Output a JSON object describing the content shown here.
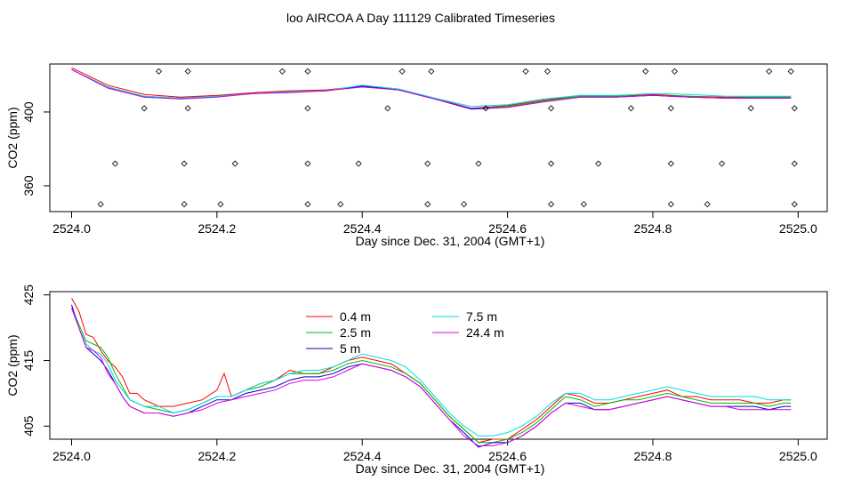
{
  "figure": {
    "title": "loo AIRCOA A  Day 111129  Calibrated Timeseries"
  },
  "chart_data": [
    {
      "type": "line",
      "title": "",
      "xlabel": "Day since Dec. 31, 2004 (GMT+1)",
      "ylabel": "CO2 (ppm)",
      "xlim": [
        2523.97,
        2525.04
      ],
      "ylim": [
        346,
        426
      ],
      "x_ticks": [
        2524.0,
        2524.2,
        2524.4,
        2524.6,
        2524.8,
        2525.0
      ],
      "x_tick_labels": [
        "2524.0",
        "2524.2",
        "2524.4",
        "2524.6",
        "2524.8",
        "2525.0"
      ],
      "y_ticks": [
        360,
        400
      ],
      "y_tick_labels": [
        "360",
        "400"
      ],
      "grid": false,
      "series": [
        {
          "color": "#ff0000",
          "x": [
            2524.0,
            2524.05,
            2524.1,
            2524.15,
            2524.2,
            2524.25,
            2524.3,
            2524.35,
            2524.4,
            2524.45,
            2524.5,
            2524.55,
            2524.6,
            2524.65,
            2524.7,
            2524.75,
            2524.8,
            2524.85,
            2524.9,
            2524.95,
            2524.99
          ],
          "y": [
            424,
            414.5,
            409.5,
            408,
            409,
            410.5,
            411.5,
            412,
            414,
            412,
            407.5,
            402,
            403.5,
            406.5,
            409,
            408.5,
            409.5,
            408.5,
            408,
            408,
            408
          ]
        },
        {
          "color": "#00bb00",
          "x": [
            2524.0,
            2524.05,
            2524.1,
            2524.15,
            2524.2,
            2524.25,
            2524.3,
            2524.35,
            2524.4,
            2524.45,
            2524.5,
            2524.55,
            2524.6,
            2524.65,
            2524.7,
            2524.75,
            2524.8,
            2524.85,
            2524.9,
            2524.95,
            2524.99
          ],
          "y": [
            423,
            413.5,
            408.5,
            407.5,
            408.5,
            410,
            411,
            411.5,
            414,
            412,
            407,
            402,
            403,
            406,
            408.5,
            408.5,
            409,
            408.5,
            407.5,
            408,
            408
          ]
        },
        {
          "color": "#0000cc",
          "x": [
            2524.0,
            2524.05,
            2524.1,
            2524.15,
            2524.2,
            2524.25,
            2524.3,
            2524.35,
            2524.4,
            2524.45,
            2524.5,
            2524.55,
            2524.6,
            2524.65,
            2524.7,
            2524.75,
            2524.8,
            2524.85,
            2524.9,
            2524.95,
            2524.99
          ],
          "y": [
            423,
            413,
            408,
            407.5,
            408.5,
            410,
            411,
            411.5,
            414,
            412,
            407,
            401.5,
            402.5,
            405.5,
            408,
            408,
            409,
            408,
            407.5,
            407.5,
            407.5
          ]
        },
        {
          "color": "#00dddd",
          "x": [
            2524.0,
            2524.05,
            2524.1,
            2524.15,
            2524.2,
            2524.25,
            2524.3,
            2524.35,
            2524.4,
            2524.45,
            2524.5,
            2524.55,
            2524.6,
            2524.65,
            2524.7,
            2524.75,
            2524.8,
            2524.85,
            2524.9,
            2524.95,
            2524.99
          ],
          "y": [
            423,
            413.5,
            408.5,
            407.5,
            408.5,
            410,
            411,
            411.5,
            414.5,
            412.5,
            407.5,
            403,
            404,
            407,
            409,
            409,
            410,
            409.5,
            408.5,
            408.5,
            408.5
          ]
        },
        {
          "color": "#dd00dd",
          "x": [
            2524.0,
            2524.05,
            2524.1,
            2524.15,
            2524.2,
            2524.25,
            2524.3,
            2524.35,
            2524.4,
            2524.45,
            2524.5,
            2524.55,
            2524.6,
            2524.65,
            2524.7,
            2524.75,
            2524.8,
            2524.85,
            2524.9,
            2524.95,
            2524.99
          ],
          "y": [
            423,
            413,
            408,
            407,
            408,
            410,
            410.5,
            411.5,
            413.5,
            412,
            407,
            402,
            402.5,
            405.5,
            408,
            408,
            409,
            408,
            407.5,
            407.5,
            407.5
          ]
        }
      ],
      "scatter_points": {
        "x": [
          2524.12,
          2524.16,
          2524.29,
          2524.325,
          2524.455,
          2524.495,
          2524.625,
          2524.655,
          2524.79,
          2524.83,
          2524.96,
          2524.99,
          2524.1,
          2524.16,
          2524.325,
          2524.435,
          2524.57,
          2524.66,
          2524.77,
          2524.825,
          2524.935,
          2524.995,
          2524.06,
          2524.155,
          2524.225,
          2524.325,
          2524.395,
          2524.49,
          2524.56,
          2524.66,
          2524.725,
          2524.825,
          2524.895,
          2524.995,
          2524.04,
          2524.155,
          2524.205,
          2524.325,
          2524.37,
          2524.49,
          2524.54,
          2524.66,
          2524.705,
          2524.825,
          2524.875,
          2524.995
        ],
        "y": [
          422,
          422,
          422,
          422,
          422,
          422,
          422,
          422,
          422,
          422,
          422,
          422,
          402,
          402,
          402,
          402,
          402,
          402,
          402,
          402,
          402,
          402,
          372,
          372,
          372,
          372,
          372,
          372,
          372,
          372,
          372,
          372,
          372,
          372,
          350,
          350,
          350,
          350,
          350,
          350,
          350,
          350,
          350,
          350,
          350,
          350
        ]
      }
    },
    {
      "type": "line",
      "title": "",
      "xlabel": "Day since Dec. 31, 2004 (GMT+1)",
      "ylabel": "CO2 (ppm)",
      "xlim": [
        2523.97,
        2525.04
      ],
      "ylim": [
        403,
        425.5
      ],
      "x_ticks": [
        2524.0,
        2524.2,
        2524.4,
        2524.6,
        2524.8,
        2525.0
      ],
      "x_tick_labels": [
        "2524.0",
        "2524.2",
        "2524.4",
        "2524.6",
        "2524.8",
        "2525.0"
      ],
      "y_ticks": [
        405,
        415,
        425
      ],
      "y_tick_labels": [
        "405",
        "415",
        "425"
      ],
      "grid": false,
      "legend": {
        "placement": "top-center"
      },
      "series": [
        {
          "name": "0.4 m",
          "color": "#ff0000",
          "x": [
            2524.0,
            2524.01,
            2524.02,
            2524.03,
            2524.04,
            2524.05,
            2524.06,
            2524.07,
            2524.08,
            2524.09,
            2524.1,
            2524.12,
            2524.14,
            2524.16,
            2524.18,
            2524.2,
            2524.21,
            2524.22,
            2524.24,
            2524.26,
            2524.28,
            2524.3,
            2524.32,
            2524.34,
            2524.36,
            2524.38,
            2524.4,
            2524.42,
            2524.44,
            2524.46,
            2524.48,
            2524.5,
            2524.52,
            2524.54,
            2524.56,
            2524.58,
            2524.6,
            2524.62,
            2524.64,
            2524.66,
            2524.68,
            2524.7,
            2524.72,
            2524.74,
            2524.76,
            2524.78,
            2524.8,
            2524.82,
            2524.84,
            2524.86,
            2524.88,
            2524.9,
            2524.92,
            2524.94,
            2524.96,
            2524.98,
            2524.99
          ],
          "y": [
            424.5,
            422.5,
            419.0,
            418.5,
            416.5,
            415.0,
            414.0,
            412.5,
            410.0,
            410.0,
            409.0,
            408.0,
            408.0,
            408.5,
            409.0,
            410.5,
            413.0,
            409.5,
            410.5,
            411.5,
            412.0,
            413.5,
            413.0,
            413.0,
            414.0,
            415.0,
            415.5,
            415.0,
            414.5,
            413.0,
            411.5,
            409.0,
            406.5,
            404.5,
            402.5,
            403.0,
            403.0,
            404.5,
            406.0,
            408.0,
            410.0,
            409.5,
            408.5,
            408.5,
            409.0,
            409.5,
            410.0,
            410.5,
            409.5,
            409.5,
            409.0,
            409.0,
            409.0,
            408.5,
            408.5,
            409.0,
            409.0
          ]
        },
        {
          "name": "2.5 m",
          "color": "#00bb00",
          "x": [
            2524.0,
            2524.01,
            2524.02,
            2524.03,
            2524.04,
            2524.05,
            2524.06,
            2524.07,
            2524.08,
            2524.09,
            2524.1,
            2524.12,
            2524.14,
            2524.16,
            2524.18,
            2524.2,
            2524.22,
            2524.24,
            2524.26,
            2524.28,
            2524.3,
            2524.32,
            2524.34,
            2524.36,
            2524.38,
            2524.4,
            2524.42,
            2524.44,
            2524.46,
            2524.48,
            2524.5,
            2524.52,
            2524.54,
            2524.56,
            2524.58,
            2524.6,
            2524.62,
            2524.64,
            2524.66,
            2524.68,
            2524.7,
            2524.72,
            2524.74,
            2524.76,
            2524.78,
            2524.8,
            2524.82,
            2524.84,
            2524.86,
            2524.88,
            2524.9,
            2524.92,
            2524.94,
            2524.96,
            2524.98,
            2524.99
          ],
          "y": [
            423.0,
            420.5,
            418.0,
            417.5,
            417.0,
            415.5,
            413.0,
            411.0,
            409.0,
            408.5,
            408.0,
            407.5,
            407.0,
            407.5,
            408.5,
            409.5,
            409.5,
            410.5,
            411.0,
            412.0,
            413.0,
            413.0,
            413.0,
            413.5,
            414.5,
            415.0,
            414.5,
            414.0,
            413.0,
            411.5,
            409.0,
            406.5,
            404.5,
            402.5,
            402.5,
            403.0,
            404.0,
            405.5,
            407.5,
            409.5,
            409.0,
            408.0,
            408.5,
            409.0,
            409.0,
            409.5,
            410.0,
            409.5,
            409.0,
            408.5,
            408.5,
            408.5,
            408.5,
            408.0,
            408.5,
            408.5
          ]
        },
        {
          "name": "5 m",
          "color": "#0000cc",
          "x": [
            2524.0,
            2524.01,
            2524.02,
            2524.03,
            2524.04,
            2524.05,
            2524.06,
            2524.07,
            2524.08,
            2524.09,
            2524.1,
            2524.12,
            2524.14,
            2524.16,
            2524.18,
            2524.2,
            2524.22,
            2524.24,
            2524.26,
            2524.28,
            2524.3,
            2524.32,
            2524.34,
            2524.36,
            2524.38,
            2524.4,
            2524.42,
            2524.44,
            2524.46,
            2524.48,
            2524.5,
            2524.52,
            2524.54,
            2524.56,
            2524.58,
            2524.6,
            2524.62,
            2524.64,
            2524.66,
            2524.68,
            2524.7,
            2524.72,
            2524.74,
            2524.76,
            2524.78,
            2524.8,
            2524.82,
            2524.84,
            2524.86,
            2524.88,
            2524.9,
            2524.92,
            2524.94,
            2524.96,
            2524.98,
            2524.99
          ],
          "y": [
            423.5,
            420.0,
            417.0,
            416.0,
            415.0,
            413.5,
            411.5,
            409.5,
            408.0,
            407.5,
            407.0,
            407.0,
            406.5,
            407.0,
            408.0,
            409.0,
            409.0,
            410.0,
            410.5,
            411.0,
            412.0,
            412.5,
            412.5,
            413.0,
            414.0,
            414.5,
            414.0,
            413.5,
            412.5,
            411.0,
            408.5,
            406.0,
            404.0,
            401.8,
            402.5,
            402.5,
            403.5,
            405.0,
            407.0,
            408.5,
            408.5,
            407.5,
            407.5,
            408.0,
            408.5,
            409.0,
            409.5,
            409.0,
            408.5,
            408.0,
            408.0,
            408.0,
            408.0,
            407.5,
            408.0,
            408.0
          ]
        },
        {
          "name": "7.5 m",
          "color": "#00dddd",
          "x": [
            2524.0,
            2524.01,
            2524.02,
            2524.03,
            2524.04,
            2524.05,
            2524.06,
            2524.07,
            2524.08,
            2524.09,
            2524.1,
            2524.12,
            2524.14,
            2524.16,
            2524.18,
            2524.2,
            2524.22,
            2524.24,
            2524.26,
            2524.28,
            2524.3,
            2524.32,
            2524.34,
            2524.36,
            2524.38,
            2524.4,
            2524.42,
            2524.44,
            2524.46,
            2524.48,
            2524.5,
            2524.52,
            2524.54,
            2524.56,
            2524.58,
            2524.6,
            2524.62,
            2524.64,
            2524.66,
            2524.68,
            2524.7,
            2524.72,
            2524.74,
            2524.76,
            2524.78,
            2524.8,
            2524.82,
            2524.84,
            2524.86,
            2524.88,
            2524.9,
            2524.92,
            2524.94,
            2524.96,
            2524.98,
            2524.99
          ],
          "y": [
            423.0,
            420.0,
            417.5,
            416.5,
            416.0,
            414.5,
            412.0,
            410.5,
            409.0,
            408.5,
            408.0,
            408.0,
            407.0,
            407.5,
            408.5,
            409.5,
            409.5,
            410.5,
            411.5,
            412.0,
            413.0,
            413.5,
            413.5,
            414.0,
            415.0,
            416.0,
            415.5,
            415.0,
            414.0,
            412.0,
            409.5,
            407.0,
            405.0,
            403.5,
            403.5,
            404.0,
            405.0,
            406.5,
            408.5,
            410.0,
            410.0,
            409.0,
            409.0,
            409.5,
            410.0,
            410.5,
            411.0,
            410.5,
            410.0,
            409.5,
            409.5,
            409.5,
            409.5,
            409.0,
            409.0,
            409.0
          ]
        },
        {
          "name": "24.4 m",
          "color": "#dd00dd",
          "x": [
            2524.0,
            2524.01,
            2524.02,
            2524.03,
            2524.04,
            2524.05,
            2524.06,
            2524.07,
            2524.08,
            2524.09,
            2524.1,
            2524.12,
            2524.14,
            2524.16,
            2524.18,
            2524.2,
            2524.22,
            2524.24,
            2524.26,
            2524.28,
            2524.3,
            2524.32,
            2524.34,
            2524.36,
            2524.38,
            2524.4,
            2524.42,
            2524.44,
            2524.46,
            2524.48,
            2524.5,
            2524.52,
            2524.54,
            2524.56,
            2524.58,
            2524.6,
            2524.62,
            2524.64,
            2524.66,
            2524.68,
            2524.7,
            2524.72,
            2524.74,
            2524.76,
            2524.78,
            2524.8,
            2524.82,
            2524.84,
            2524.86,
            2524.88,
            2524.9,
            2524.92,
            2524.94,
            2524.96,
            2524.98,
            2524.99
          ],
          "y": [
            423.0,
            420.0,
            417.0,
            416.5,
            415.5,
            413.0,
            411.5,
            409.5,
            408.0,
            407.5,
            407.0,
            407.0,
            406.5,
            407.0,
            407.5,
            408.5,
            409.0,
            409.5,
            410.0,
            410.5,
            411.5,
            412.0,
            412.0,
            412.5,
            413.5,
            414.5,
            414.0,
            413.5,
            412.5,
            411.0,
            408.5,
            406.0,
            403.5,
            402.0,
            402.0,
            402.5,
            403.5,
            405.0,
            407.0,
            408.5,
            408.0,
            407.5,
            407.5,
            408.0,
            408.5,
            409.0,
            409.5,
            409.0,
            408.5,
            408.0,
            408.0,
            407.5,
            407.5,
            407.5,
            407.5,
            407.5
          ]
        }
      ]
    }
  ]
}
